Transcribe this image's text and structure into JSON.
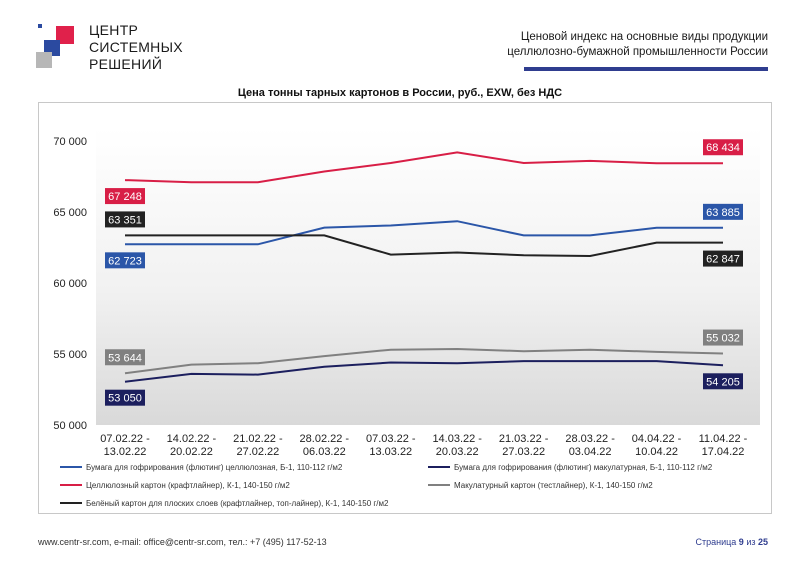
{
  "header": {
    "logo_lines": [
      "ЦЕНТР",
      "СИСТЕМНЫХ",
      "РЕШЕНИЙ"
    ],
    "title_line1": "Ценовой индекс на основные виды продукции",
    "title_line2": "целлюлозно-бумажной промышленности России",
    "colors": {
      "accent": "#2f3d8f",
      "logo_red": "#e0214b",
      "logo_blue": "#2b4aa0",
      "logo_grey": "#b7b7b7"
    }
  },
  "chart_data": {
    "type": "line",
    "title": "Цена тонны тарных картонов в России, руб., EXW, без НДС",
    "xlabel": "",
    "ylabel": "",
    "ylim": [
      50000,
      70000
    ],
    "yticks": [
      50000,
      55000,
      60000,
      65000,
      70000
    ],
    "ytick_labels": [
      "50 000",
      "55 000",
      "60 000",
      "65 000",
      "70 000"
    ],
    "grid": false,
    "legend_position": "bottom",
    "categories": [
      [
        "07.02.22 -",
        "13.02.22"
      ],
      [
        "14.02.22 -",
        "20.02.22"
      ],
      [
        "21.02.22 -",
        "27.02.22"
      ],
      [
        "28.02.22 -",
        "06.03.22"
      ],
      [
        "07.03.22 -",
        "13.03.22"
      ],
      [
        "14.03.22 -",
        "20.03.22"
      ],
      [
        "21.03.22 -",
        "27.03.22"
      ],
      [
        "28.03.22 -",
        "03.04.22"
      ],
      [
        "04.04.22 -",
        "10.04.22"
      ],
      [
        "11.04.22 -",
        "17.04.22"
      ]
    ],
    "series": [
      {
        "name": "Бумага для гофрирования (флютинг) целлюлозная, Б-1, 110-112 г/м2",
        "color": "#2b56a8",
        "values": [
          62723,
          62723,
          62723,
          63900,
          64050,
          64350,
          63350,
          63350,
          63885,
          63885
        ],
        "first_label": "62 723",
        "last_label": "63 885",
        "first_label_side": "below",
        "last_label_side": "above"
      },
      {
        "name": "Бумага для гофрирования (флютинг) макулатурная, Б-1, 110-112 г/м2",
        "color": "#1c1f5e",
        "values": [
          53050,
          53600,
          53550,
          54100,
          54400,
          54350,
          54500,
          54500,
          54500,
          54205
        ],
        "first_label": "53 050",
        "last_label": "54 205",
        "first_label_side": "below",
        "last_label_side": "below"
      },
      {
        "name": "Целлюлозный картон (крафтлайнер), К-1, 140-150 г/м2",
        "color": "#d81e46",
        "values": [
          67248,
          67100,
          67100,
          67850,
          68450,
          69200,
          68450,
          68600,
          68434,
          68434
        ],
        "first_label": "67 248",
        "last_label": "68 434",
        "first_label_side": "below",
        "last_label_side": "above"
      },
      {
        "name": "Макулатурный картон (тестлайнер), К-1, 140-150 г/м2",
        "color": "#808080",
        "values": [
          53644,
          54250,
          54350,
          54850,
          55300,
          55350,
          55200,
          55300,
          55150,
          55032
        ],
        "first_label": "53 644",
        "last_label": "55 032",
        "first_label_side": "above",
        "last_label_side": "above"
      },
      {
        "name": "Белёный картон для плоских слоев (крафтлайнер, топ-лайнер), К-1, 140-150 г/м2",
        "color": "#222222",
        "values": [
          63351,
          63351,
          63351,
          63351,
          62000,
          62150,
          61950,
          61900,
          62847,
          62847
        ],
        "first_label": "63 351",
        "last_label": "62 847",
        "first_label_side": "above",
        "last_label_side": "below"
      }
    ]
  },
  "footer": {
    "contacts": "www.centr-sr.com, e-mail: office@centr-sr.com, тел.: +7 (495) 117-52-13",
    "page_word": "Страница",
    "page_current": "9",
    "page_of": "из",
    "page_total": "25"
  }
}
